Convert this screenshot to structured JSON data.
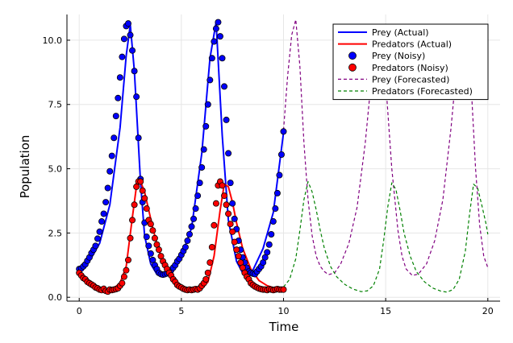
{
  "chart_data": {
    "type": "line",
    "title": "",
    "xlabel": "Time",
    "ylabel": "Population",
    "xlim": [
      -0.6,
      20.6
    ],
    "ylim": [
      -0.15,
      11.0
    ],
    "xticks": [
      0,
      5,
      10,
      15,
      20
    ],
    "xtick_labels": [
      "0",
      "5",
      "10",
      "15",
      "20"
    ],
    "yticks": [
      0.0,
      2.5,
      5.0,
      7.5,
      10.0
    ],
    "ytick_labels": [
      "0.0",
      "2.5",
      "5.0",
      "7.5",
      "10.0"
    ],
    "grid": true,
    "legend_position": "top-right",
    "series": [
      {
        "name": "Prey (Actual)",
        "kind": "line",
        "color": "#0000ff",
        "x": [
          0,
          0.5,
          1,
          1.5,
          2,
          2.3,
          2.5,
          2.7,
          3,
          3.2,
          3.5,
          3.8,
          4,
          4.3,
          4.6,
          5,
          5.5,
          6,
          6.4,
          6.7,
          7,
          7.3,
          7.7,
          8,
          8.5,
          9,
          9.5,
          10
        ],
        "y": [
          1.05,
          1.4,
          2.1,
          3.6,
          6.6,
          9.4,
          10.6,
          8.8,
          4.5,
          2.4,
          1.3,
          0.9,
          0.88,
          0.95,
          1.2,
          1.6,
          2.7,
          5.6,
          9.3,
          10.7,
          6.3,
          3.0,
          1.4,
          0.95,
          1.05,
          1.9,
          3.3,
          6.4
        ]
      },
      {
        "name": "Predators (Actual)",
        "kind": "line",
        "color": "#ff0000",
        "x": [
          0,
          0.3,
          0.6,
          1,
          1.3,
          1.6,
          2,
          2.3,
          2.6,
          2.8,
          3,
          3.2,
          3.4,
          3.6,
          3.8,
          4,
          4.3,
          4.6,
          5,
          5.5,
          6,
          6.3,
          6.6,
          6.9,
          7.1,
          7.3,
          7.5,
          7.7,
          8,
          8.4,
          8.8,
          9.2,
          9.6,
          10
        ],
        "y": [
          0.95,
          0.65,
          0.45,
          0.32,
          0.27,
          0.3,
          0.55,
          1.2,
          3.1,
          4.3,
          4.5,
          4.1,
          3.4,
          2.7,
          2.1,
          1.6,
          1.05,
          0.65,
          0.4,
          0.28,
          0.32,
          0.6,
          1.6,
          3.4,
          4.4,
          4.3,
          3.7,
          2.9,
          1.9,
          1.1,
          0.65,
          0.45,
          0.35,
          0.35
        ]
      },
      {
        "name": "Prey (Noisy)",
        "kind": "scatter",
        "color": "#0000ff",
        "x": [
          0,
          0.1,
          0.2,
          0.3,
          0.4,
          0.5,
          0.6,
          0.7,
          0.8,
          0.9,
          1,
          1.1,
          1.2,
          1.3,
          1.4,
          1.5,
          1.6,
          1.7,
          1.8,
          1.9,
          2,
          2.1,
          2.2,
          2.3,
          2.4,
          2.5,
          2.6,
          2.7,
          2.8,
          2.9,
          3,
          3.1,
          3.2,
          3.3,
          3.4,
          3.5,
          3.6,
          3.7,
          3.8,
          3.9,
          4,
          4.1,
          4.2,
          4.3,
          4.4,
          4.5,
          4.6,
          4.7,
          4.8,
          4.9,
          5,
          5.1,
          5.2,
          5.3,
          5.4,
          5.5,
          5.6,
          5.7,
          5.8,
          5.9,
          6,
          6.1,
          6.2,
          6.3,
          6.4,
          6.5,
          6.6,
          6.7,
          6.8,
          6.9,
          7,
          7.1,
          7.2,
          7.3,
          7.4,
          7.5,
          7.6,
          7.7,
          7.8,
          7.9,
          8,
          8.1,
          8.2,
          8.3,
          8.4,
          8.5,
          8.6,
          8.7,
          8.8,
          8.9,
          9,
          9.1,
          9.2,
          9.3,
          9.4,
          9.5,
          9.6,
          9.7,
          9.8,
          9.9,
          10
        ],
        "y": [
          1.1,
          1.12,
          1.2,
          1.28,
          1.42,
          1.55,
          1.72,
          1.85,
          2.0,
          2.28,
          2.55,
          2.95,
          3.25,
          3.7,
          4.25,
          4.9,
          5.5,
          6.2,
          7.05,
          7.75,
          8.55,
          9.35,
          10.05,
          10.55,
          10.65,
          10.2,
          9.6,
          8.8,
          7.8,
          6.2,
          4.6,
          3.7,
          2.9,
          2.35,
          2.0,
          1.7,
          1.45,
          1.25,
          1.1,
          0.95,
          0.9,
          0.88,
          0.9,
          0.93,
          0.95,
          1.05,
          1.15,
          1.25,
          1.4,
          1.5,
          1.65,
          1.8,
          1.95,
          2.2,
          2.45,
          2.75,
          3.05,
          3.45,
          3.95,
          4.45,
          5.05,
          5.75,
          6.65,
          7.5,
          8.45,
          9.3,
          9.95,
          10.45,
          10.7,
          10.15,
          9.3,
          8.2,
          6.9,
          5.6,
          4.45,
          3.65,
          3.05,
          2.65,
          2.2,
          1.85,
          1.55,
          1.35,
          1.15,
          1.0,
          0.95,
          0.92,
          0.9,
          1.0,
          1.1,
          1.2,
          1.35,
          1.55,
          1.75,
          2.05,
          2.45,
          2.95,
          3.45,
          4.05,
          4.75,
          5.55,
          6.45
        ]
      },
      {
        "name": "Predators (Noisy)",
        "kind": "scatter",
        "color": "#ff0000",
        "x": [
          0,
          0.1,
          0.2,
          0.3,
          0.4,
          0.5,
          0.6,
          0.7,
          0.8,
          0.9,
          1,
          1.1,
          1.2,
          1.3,
          1.4,
          1.5,
          1.6,
          1.7,
          1.8,
          1.9,
          2,
          2.1,
          2.2,
          2.3,
          2.4,
          2.5,
          2.6,
          2.7,
          2.8,
          2.9,
          3,
          3.1,
          3.2,
          3.3,
          3.4,
          3.5,
          3.6,
          3.7,
          3.8,
          3.9,
          4,
          4.1,
          4.2,
          4.3,
          4.4,
          4.5,
          4.6,
          4.7,
          4.8,
          4.9,
          5,
          5.1,
          5.2,
          5.3,
          5.4,
          5.5,
          5.6,
          5.7,
          5.8,
          5.9,
          6,
          6.1,
          6.2,
          6.3,
          6.4,
          6.5,
          6.6,
          6.7,
          6.8,
          6.9,
          7,
          7.1,
          7.2,
          7.3,
          7.4,
          7.5,
          7.6,
          7.7,
          7.8,
          7.9,
          8,
          8.1,
          8.2,
          8.3,
          8.4,
          8.5,
          8.6,
          8.7,
          8.8,
          8.9,
          9,
          9.1,
          9.2,
          9.3,
          9.4,
          9.5,
          9.6,
          9.7,
          9.8,
          9.9,
          10
        ],
        "y": [
          0.95,
          0.85,
          0.75,
          0.7,
          0.6,
          0.55,
          0.5,
          0.45,
          0.38,
          0.35,
          0.3,
          0.28,
          0.33,
          0.25,
          0.22,
          0.3,
          0.28,
          0.3,
          0.32,
          0.35,
          0.45,
          0.55,
          0.8,
          1.05,
          1.45,
          2.3,
          3.0,
          3.6,
          4.3,
          4.5,
          4.5,
          4.15,
          3.85,
          3.45,
          3.0,
          2.85,
          2.6,
          2.3,
          2.05,
          1.85,
          1.6,
          1.4,
          1.25,
          1.1,
          0.95,
          0.85,
          0.7,
          0.6,
          0.48,
          0.42,
          0.38,
          0.33,
          0.3,
          0.28,
          0.3,
          0.28,
          0.3,
          0.32,
          0.3,
          0.35,
          0.45,
          0.55,
          0.7,
          0.95,
          1.35,
          1.95,
          2.8,
          3.65,
          4.35,
          4.5,
          4.35,
          3.95,
          3.6,
          3.25,
          2.85,
          2.55,
          2.15,
          1.85,
          1.6,
          1.35,
          1.15,
          0.95,
          0.8,
          0.7,
          0.55,
          0.48,
          0.42,
          0.38,
          0.34,
          0.32,
          0.3,
          0.3,
          0.28,
          0.32,
          0.3,
          0.28,
          0.3,
          0.32,
          0.3,
          0.3,
          0.3
        ]
      },
      {
        "name": "Prey (Forecasted)",
        "kind": "dashed",
        "color": "#800080",
        "x": [
          10,
          10.2,
          10.4,
          10.6,
          10.8,
          11,
          11.2,
          11.4,
          11.6,
          11.8,
          12,
          12.2,
          12.5,
          12.8,
          13.2,
          13.6,
          14,
          14.3,
          14.6,
          14.8,
          15,
          15.3,
          15.6,
          15.8,
          16,
          16.3,
          16.6,
          17,
          17.4,
          17.8,
          18.2,
          18.5,
          18.8,
          19,
          19.2,
          19.4,
          19.6,
          19.8,
          20
        ],
        "y": [
          6.5,
          8.6,
          10.2,
          10.8,
          9.0,
          6.0,
          3.8,
          2.4,
          1.6,
          1.2,
          1.0,
          0.88,
          0.95,
          1.3,
          2.1,
          3.5,
          6.0,
          8.5,
          10.5,
          10.6,
          8.4,
          5.0,
          2.6,
          1.6,
          1.1,
          0.85,
          0.9,
          1.3,
          2.2,
          3.8,
          6.6,
          9.2,
          10.6,
          10.4,
          8.0,
          5.0,
          2.8,
          1.6,
          1.15
        ]
      },
      {
        "name": "Predators (Forecasted)",
        "kind": "dashed",
        "color": "#008000",
        "x": [
          10,
          10.3,
          10.6,
          10.8,
          11,
          11.2,
          11.4,
          11.6,
          11.8,
          12,
          12.3,
          12.6,
          13,
          13.4,
          13.8,
          14.1,
          14.4,
          14.7,
          14.9,
          15.1,
          15.3,
          15.5,
          15.7,
          15.9,
          16.2,
          16.5,
          16.9,
          17.3,
          17.7,
          18,
          18.3,
          18.6,
          18.9,
          19.1,
          19.3,
          19.5,
          19.7,
          19.9,
          20
        ],
        "y": [
          0.4,
          0.7,
          1.5,
          2.6,
          3.8,
          4.5,
          4.1,
          3.4,
          2.6,
          1.9,
          1.2,
          0.8,
          0.5,
          0.32,
          0.22,
          0.25,
          0.45,
          1.1,
          2.2,
          3.5,
          4.45,
          4.2,
          3.4,
          2.5,
          1.6,
          1.0,
          0.6,
          0.36,
          0.24,
          0.2,
          0.3,
          0.7,
          1.8,
          3.2,
          4.4,
          4.25,
          3.6,
          2.9,
          2.45
        ]
      }
    ]
  }
}
